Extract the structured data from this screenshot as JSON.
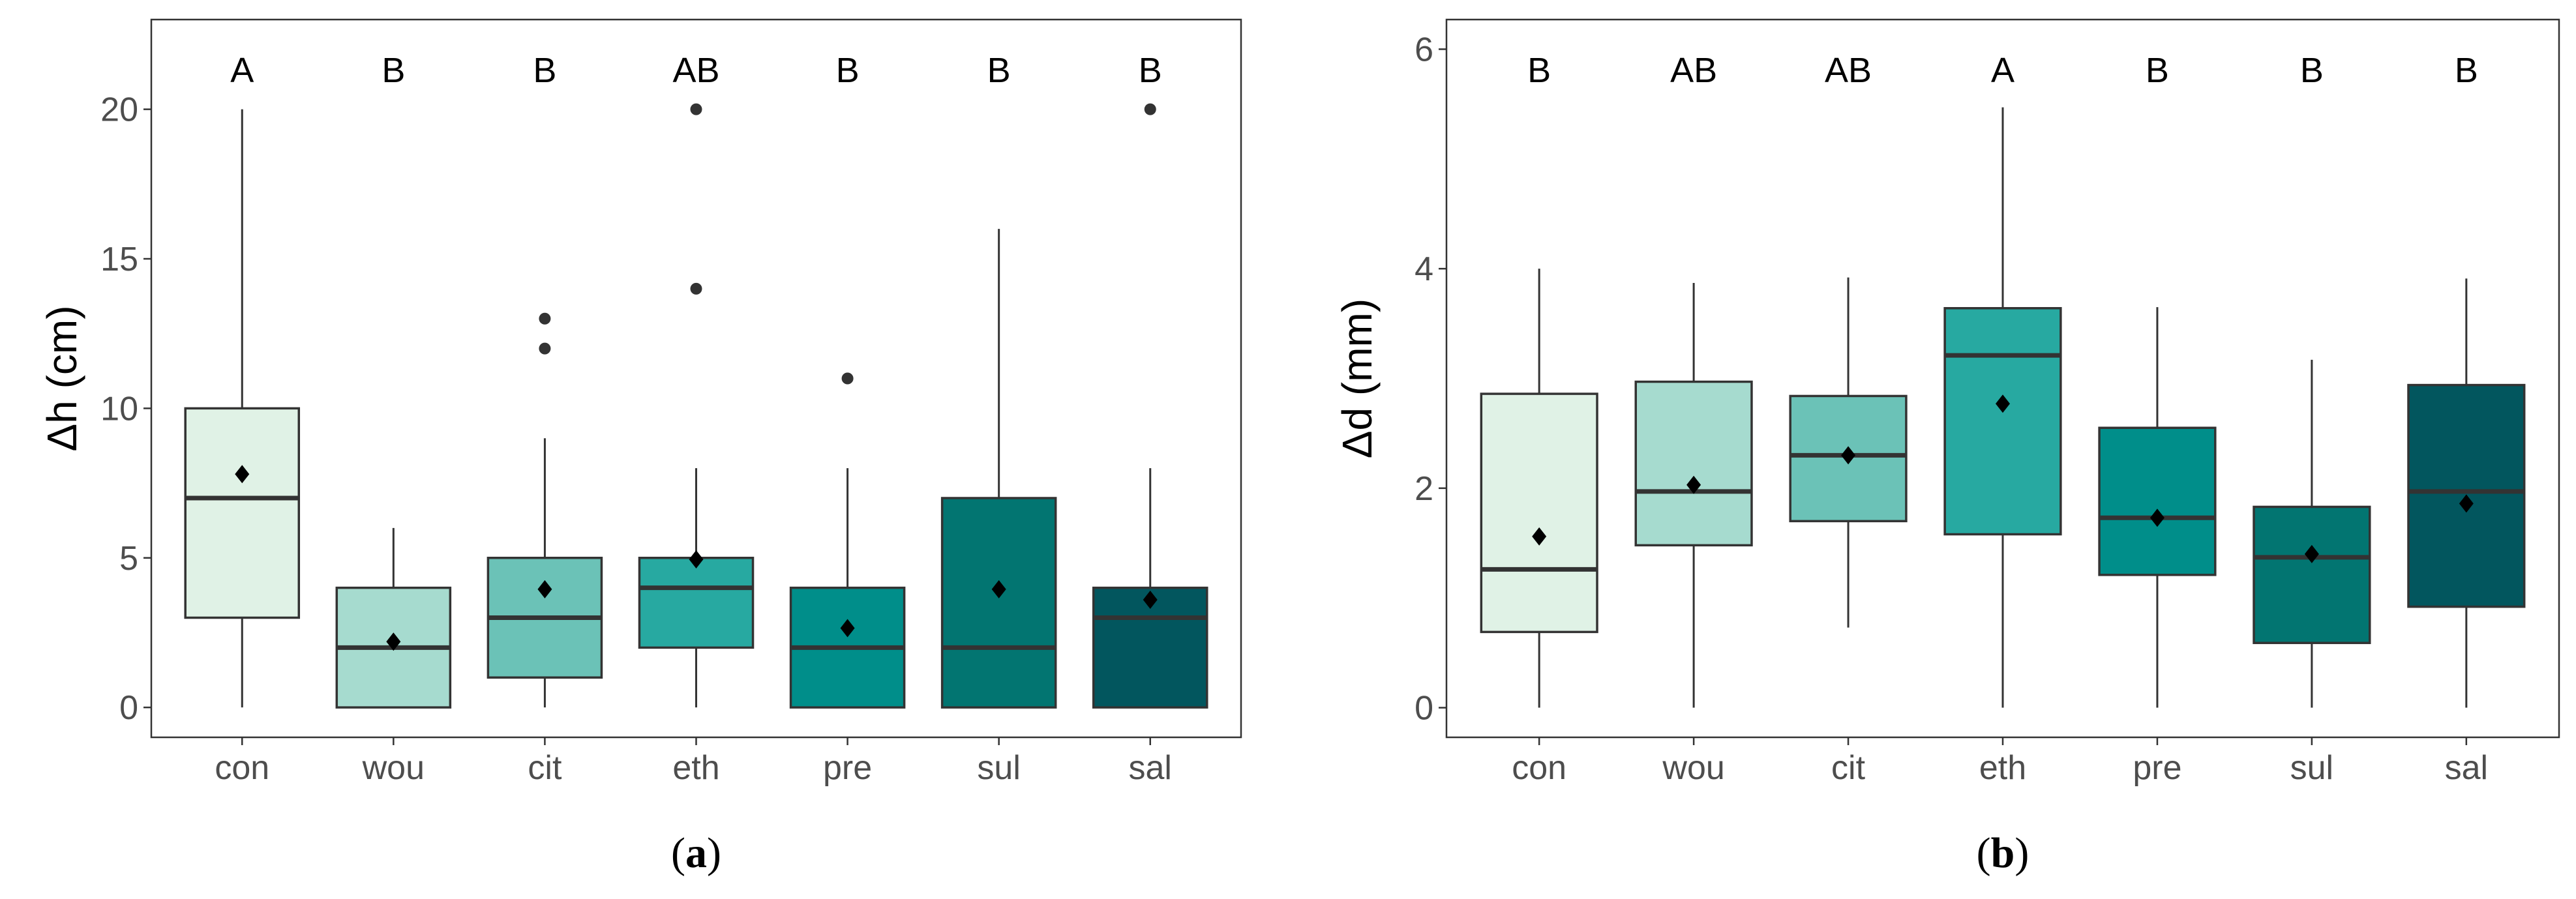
{
  "chart_data": [
    {
      "type": "box",
      "panel_label": "(a)",
      "caption_letter": "a",
      "ylabel": "Δh (cm)",
      "xlabel": "",
      "ylim": [
        -1,
        23
      ],
      "yticks": [
        0,
        5,
        10,
        15,
        20
      ],
      "categories": [
        "con",
        "wou",
        "cit",
        "eth",
        "pre",
        "sul",
        "sal"
      ],
      "colors": [
        "#e0f2e6",
        "#a6dbcf",
        "#6bc2b7",
        "#27a9a1",
        "#008e8a",
        "#027571",
        "#02565e"
      ],
      "significance_letters": [
        "A",
        "B",
        "B",
        "AB",
        "B",
        "B",
        "B"
      ],
      "boxes": [
        {
          "min": 0,
          "q1": 3,
          "median": 7,
          "q3": 10,
          "max": 20,
          "mean": 7.8,
          "outliers": []
        },
        {
          "min": 0,
          "q1": 0,
          "median": 2,
          "q3": 4,
          "max": 6,
          "mean": 2.2,
          "outliers": []
        },
        {
          "min": 0,
          "q1": 1,
          "median": 3,
          "q3": 5,
          "max": 9,
          "mean": 3.95,
          "outliers": [
            12,
            13
          ]
        },
        {
          "min": 0,
          "q1": 2,
          "median": 4,
          "q3": 5,
          "max": 8,
          "mean": 4.95,
          "outliers": [
            14,
            20
          ]
        },
        {
          "min": 0,
          "q1": 0,
          "median": 2,
          "q3": 4,
          "max": 8,
          "mean": 2.65,
          "outliers": [
            11
          ]
        },
        {
          "min": 0,
          "q1": 0,
          "median": 2,
          "q3": 7,
          "max": 16,
          "mean": 3.95,
          "outliers": []
        },
        {
          "min": 0,
          "q1": 0,
          "median": 3,
          "q3": 4,
          "max": 8,
          "mean": 3.6,
          "outliers": [
            20
          ]
        }
      ],
      "grid": false
    },
    {
      "type": "box",
      "panel_label": "(b)",
      "caption_letter": "b",
      "ylabel": "Δd (mm)",
      "xlabel": "",
      "ylim": [
        -0.27,
        6.27
      ],
      "yticks": [
        0,
        2,
        4,
        6
      ],
      "categories": [
        "con",
        "wou",
        "cit",
        "eth",
        "pre",
        "sul",
        "sal"
      ],
      "colors": [
        "#e0f2e6",
        "#a6dbcf",
        "#6bc2b7",
        "#27a9a1",
        "#008e8a",
        "#027571",
        "#02565e"
      ],
      "significance_letters": [
        "B",
        "AB",
        "AB",
        "A",
        "B",
        "B",
        "B"
      ],
      "boxes": [
        {
          "min": 0,
          "q1": 0.69,
          "median": 1.26,
          "q3": 2.86,
          "max": 4.0,
          "mean": 1.56,
          "outliers": []
        },
        {
          "min": 0,
          "q1": 1.48,
          "median": 1.97,
          "q3": 2.97,
          "max": 3.87,
          "mean": 2.03,
          "outliers": []
        },
        {
          "min": 0.73,
          "q1": 1.7,
          "median": 2.3,
          "q3": 2.84,
          "max": 3.92,
          "mean": 2.3,
          "outliers": []
        },
        {
          "min": 0,
          "q1": 1.58,
          "median": 3.21,
          "q3": 3.64,
          "max": 5.47,
          "mean": 2.77,
          "outliers": []
        },
        {
          "min": 0,
          "q1": 1.21,
          "median": 1.73,
          "q3": 2.55,
          "max": 3.65,
          "mean": 1.73,
          "outliers": []
        },
        {
          "min": 0,
          "q1": 0.59,
          "median": 1.37,
          "q3": 1.83,
          "max": 3.17,
          "mean": 1.4,
          "outliers": []
        },
        {
          "min": 0,
          "q1": 0.92,
          "median": 1.97,
          "q3": 2.94,
          "max": 3.91,
          "mean": 1.86,
          "outliers": []
        }
      ],
      "grid": false
    }
  ]
}
